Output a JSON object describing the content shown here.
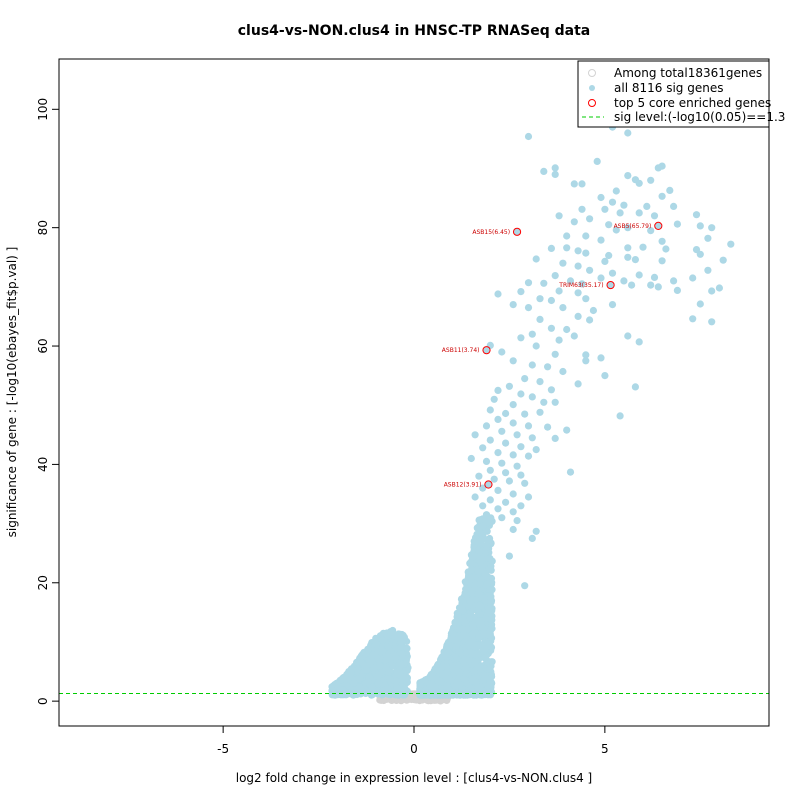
{
  "chart_data": {
    "type": "scatter",
    "title": "clus4-vs-NON.clus4 in HNSC-TP RNASeq data",
    "xlabel": "log2 fold change in expression level : [clus4-vs-NON.clus4 ]",
    "ylabel": "significance of gene : [-log10(ebayes_fit$p.val) ]",
    "xlim": [
      -9.3,
      9.3
    ],
    "ylim": [
      -4.2,
      108.5
    ],
    "x_ticks": [
      -5,
      0,
      5
    ],
    "x_tick_labels": [
      "-5",
      "0",
      "5"
    ],
    "y_ticks": [
      0,
      20,
      40,
      60,
      80,
      100
    ],
    "y_tick_labels": [
      "0",
      "20",
      "40",
      "60",
      "80",
      "100"
    ],
    "colors": {
      "nonsig": "#d3d3d3",
      "sig": "#add8e6",
      "core": "#ff0000",
      "core_label": "#cc0000",
      "threshold": "#00cc00"
    },
    "legend": {
      "position": "top-right",
      "entries": [
        {
          "label": "Among total18361genes",
          "type": "open-circle",
          "color": "#d3d3d3"
        },
        {
          "label": "all 8116 sig genes",
          "type": "filled-circle",
          "color": "#add8e6"
        },
        {
          "label": "top 5 core enriched genes",
          "type": "red-circle",
          "color": "#ff0000"
        },
        {
          "label": "sig level:(-log10(0.05)==1.3",
          "type": "dashed-line",
          "color": "#00cc00"
        }
      ]
    },
    "threshold": 1.3,
    "core_genes": [
      {
        "label": "ASB15(6.45)",
        "x": 2.7,
        "y": 79.3
      },
      {
        "label": "ASB5(65.79)",
        "x": 6.4,
        "y": 80.3
      },
      {
        "label": "TRIM63(35.17)",
        "x": 5.15,
        "y": 70.3
      },
      {
        "label": "ASB11(3.74)",
        "x": 1.9,
        "y": 59.3
      },
      {
        "label": "ASB12(3.91)",
        "x": 1.95,
        "y": 36.6
      }
    ],
    "upper_sig_points": [
      [
        3.0,
        95.4
      ],
      [
        5.2,
        97.0
      ],
      [
        5.6,
        96.0
      ],
      [
        4.8,
        91.2
      ],
      [
        3.4,
        89.5
      ],
      [
        3.7,
        90.1
      ],
      [
        3.7,
        89.0
      ],
      [
        4.2,
        87.4
      ],
      [
        4.4,
        87.4
      ],
      [
        5.8,
        88.1
      ],
      [
        5.6,
        88.8
      ],
      [
        5.9,
        87.5
      ],
      [
        6.4,
        90.1
      ],
      [
        6.5,
        90.4
      ],
      [
        6.2,
        88.0
      ],
      [
        5.3,
        86.2
      ],
      [
        6.7,
        86.3
      ],
      [
        4.9,
        85.1
      ],
      [
        5.2,
        84.3
      ],
      [
        5.5,
        83.8
      ],
      [
        6.1,
        83.6
      ],
      [
        6.5,
        85.3
      ],
      [
        6.8,
        83.6
      ],
      [
        4.4,
        83.1
      ],
      [
        5.0,
        83.1
      ],
      [
        5.4,
        82.5
      ],
      [
        5.9,
        82.5
      ],
      [
        6.3,
        82.0
      ],
      [
        7.4,
        82.2
      ],
      [
        3.8,
        82.0
      ],
      [
        4.2,
        81.0
      ],
      [
        4.6,
        81.5
      ],
      [
        5.1,
        80.5
      ],
      [
        5.6,
        80.0
      ],
      [
        6.2,
        79.5
      ],
      [
        6.9,
        80.6
      ],
      [
        7.5,
        80.3
      ],
      [
        7.8,
        80.0
      ],
      [
        4.0,
        78.6
      ],
      [
        4.5,
        78.6
      ],
      [
        4.9,
        77.9
      ],
      [
        5.3,
        79.6
      ],
      [
        6.5,
        77.7
      ],
      [
        7.7,
        78.2
      ],
      [
        8.3,
        77.2
      ],
      [
        3.6,
        76.5
      ],
      [
        4.0,
        76.6
      ],
      [
        4.3,
        76.1
      ],
      [
        5.6,
        76.6
      ],
      [
        6.0,
        76.7
      ],
      [
        6.6,
        76.4
      ],
      [
        7.4,
        76.3
      ],
      [
        4.5,
        75.7
      ],
      [
        5.1,
        75.3
      ],
      [
        5.6,
        75.0
      ],
      [
        7.5,
        75.5
      ],
      [
        3.2,
        74.7
      ],
      [
        3.9,
        74.0
      ],
      [
        4.3,
        73.5
      ],
      [
        5.0,
        74.3
      ],
      [
        5.8,
        74.6
      ],
      [
        6.5,
        74.4
      ],
      [
        8.1,
        74.5
      ],
      [
        4.6,
        72.8
      ],
      [
        5.2,
        72.3
      ],
      [
        5.9,
        72.0
      ],
      [
        6.3,
        71.6
      ],
      [
        7.7,
        72.8
      ],
      [
        3.7,
        71.9
      ],
      [
        4.1,
        71.0
      ],
      [
        4.4,
        70.5
      ],
      [
        4.9,
        71.5
      ],
      [
        5.5,
        71.0
      ],
      [
        6.2,
        70.3
      ],
      [
        6.8,
        71.0
      ],
      [
        7.3,
        71.5
      ],
      [
        3.0,
        70.7
      ],
      [
        3.4,
        70.6
      ],
      [
        3.8,
        69.3
      ],
      [
        4.3,
        69.0
      ],
      [
        5.7,
        70.3
      ],
      [
        6.9,
        69.4
      ],
      [
        7.8,
        69.3
      ],
      [
        8.0,
        69.8
      ],
      [
        2.8,
        69.2
      ],
      [
        3.3,
        68.0
      ],
      [
        4.5,
        68.0
      ],
      [
        3.6,
        67.7
      ],
      [
        3.9,
        66.5
      ],
      [
        4.7,
        66.0
      ],
      [
        5.2,
        67.0
      ],
      [
        6.4,
        70.0
      ],
      [
        7.5,
        67.1
      ],
      [
        2.6,
        67.0
      ],
      [
        3.0,
        66.5
      ],
      [
        4.3,
        65.0
      ],
      [
        3.3,
        64.5
      ],
      [
        4.6,
        64.4
      ],
      [
        7.3,
        64.6
      ],
      [
        7.8,
        64.1
      ],
      [
        2.2,
        68.8
      ],
      [
        3.6,
        63.0
      ],
      [
        4.0,
        62.8
      ],
      [
        3.1,
        62.0
      ],
      [
        4.2,
        61.7
      ],
      [
        5.6,
        61.7
      ],
      [
        2.8,
        61.4
      ],
      [
        3.8,
        61.0
      ],
      [
        3.2,
        60.0
      ],
      [
        5.9,
        60.7
      ],
      [
        2.0,
        60.1
      ],
      [
        2.3,
        59.0
      ],
      [
        3.7,
        58.6
      ],
      [
        4.5,
        58.5
      ],
      [
        4.9,
        58.0
      ],
      [
        2.6,
        57.5
      ],
      [
        3.1,
        56.8
      ],
      [
        3.5,
        56.5
      ],
      [
        4.5,
        57.5
      ],
      [
        3.9,
        55.7
      ],
      [
        5.0,
        55.0
      ],
      [
        2.9,
        54.5
      ],
      [
        3.3,
        54.0
      ],
      [
        4.3,
        53.6
      ],
      [
        5.8,
        53.1
      ],
      [
        2.5,
        53.2
      ],
      [
        3.6,
        52.6
      ],
      [
        2.2,
        52.5
      ],
      [
        2.8,
        51.9
      ],
      [
        3.1,
        51.4
      ],
      [
        2.1,
        51.0
      ],
      [
        3.4,
        50.5
      ],
      [
        2.6,
        50.1
      ],
      [
        3.7,
        50.5
      ],
      [
        2.0,
        49.2
      ],
      [
        2.4,
        48.6
      ],
      [
        2.9,
        48.5
      ],
      [
        3.3,
        48.8
      ],
      [
        5.4,
        48.2
      ],
      [
        2.2,
        47.6
      ],
      [
        2.6,
        47.0
      ],
      [
        3.0,
        46.5
      ],
      [
        3.5,
        46.3
      ],
      [
        4.0,
        45.8
      ],
      [
        1.9,
        46.5
      ],
      [
        2.3,
        45.6
      ],
      [
        2.7,
        45.0
      ],
      [
        3.1,
        44.5
      ],
      [
        3.7,
        44.4
      ],
      [
        1.6,
        45.0
      ],
      [
        2.0,
        44.1
      ],
      [
        2.4,
        43.6
      ],
      [
        2.8,
        43.0
      ],
      [
        3.2,
        42.5
      ],
      [
        1.8,
        42.8
      ],
      [
        2.2,
        42.0
      ],
      [
        2.6,
        41.6
      ],
      [
        3.0,
        41.4
      ],
      [
        1.5,
        41.0
      ],
      [
        1.9,
        40.5
      ],
      [
        2.3,
        40.2
      ],
      [
        2.7,
        39.7
      ],
      [
        2.0,
        39.0
      ],
      [
        2.4,
        38.6
      ],
      [
        2.8,
        38.2
      ],
      [
        4.1,
        38.7
      ],
      [
        1.7,
        38.0
      ],
      [
        2.1,
        37.5
      ],
      [
        2.5,
        37.2
      ],
      [
        2.9,
        36.8
      ],
      [
        1.8,
        36.0
      ],
      [
        2.2,
        35.6
      ],
      [
        2.6,
        35.0
      ],
      [
        3.0,
        34.5
      ],
      [
        1.6,
        34.5
      ],
      [
        2.0,
        34.0
      ],
      [
        2.4,
        33.6
      ],
      [
        2.8,
        33.0
      ],
      [
        1.8,
        33.0
      ],
      [
        2.2,
        32.5
      ],
      [
        2.6,
        32.0
      ],
      [
        1.9,
        31.5
      ],
      [
        2.3,
        31.0
      ],
      [
        2.7,
        30.5
      ],
      [
        3.2,
        28.7
      ],
      [
        2.6,
        29.0
      ],
      [
        3.1,
        27.5
      ],
      [
        2.5,
        24.5
      ],
      [
        2.9,
        19.5
      ]
    ],
    "core_cloud": {
      "description": "dense cloud of significant genes near zero fold change"
    }
  }
}
